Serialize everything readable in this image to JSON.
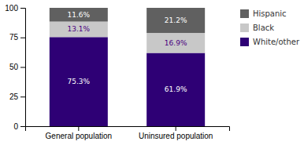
{
  "chart_data": {
    "type": "bar",
    "stacked": true,
    "data_labels": true,
    "legend": "right",
    "grid": false,
    "categories": [
      "General population",
      "Uninsured population"
    ],
    "series": [
      {
        "name": "White/other",
        "color": "#2e0075",
        "values": [
          75.3,
          61.9
        ],
        "value_labels": [
          "75.3%",
          "61.9%"
        ]
      },
      {
        "name": "Black",
        "color": "#c8c8c8",
        "values": [
          13.1,
          16.9
        ],
        "value_labels": [
          "13.1%",
          "16.9%"
        ]
      },
      {
        "name": "Hispanic",
        "color": "#606060",
        "values": [
          11.6,
          21.2
        ],
        "value_labels": [
          "11.6%",
          "21.2%"
        ]
      }
    ],
    "ylim": [
      0,
      100
    ],
    "yticks": [
      0,
      25,
      50,
      75,
      100
    ]
  }
}
